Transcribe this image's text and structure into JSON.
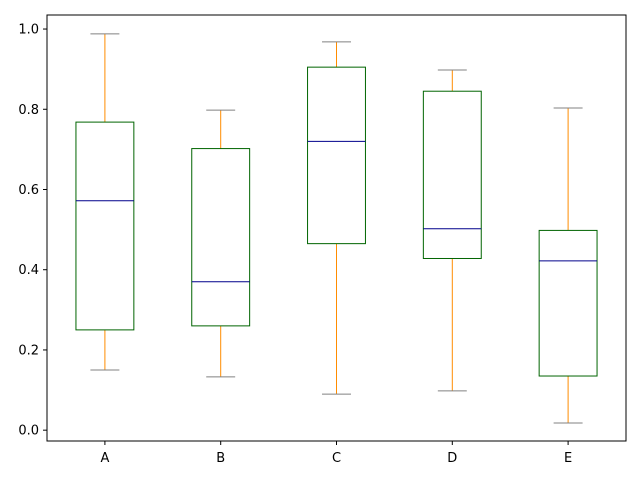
{
  "chart_data": {
    "type": "box",
    "title": "",
    "xlabel": "",
    "ylabel": "",
    "categories": [
      "A",
      "B",
      "C",
      "D",
      "E"
    ],
    "boxes": [
      {
        "name": "A",
        "whislo": 0.15,
        "q1": 0.25,
        "med": 0.572,
        "q3": 0.768,
        "whishi": 0.988
      },
      {
        "name": "B",
        "whislo": 0.133,
        "q1": 0.26,
        "med": 0.37,
        "q3": 0.702,
        "whishi": 0.798
      },
      {
        "name": "C",
        "whislo": 0.09,
        "q1": 0.465,
        "med": 0.72,
        "q3": 0.905,
        "whishi": 0.968
      },
      {
        "name": "D",
        "whislo": 0.098,
        "q1": 0.428,
        "med": 0.502,
        "q3": 0.845,
        "whishi": 0.898
      },
      {
        "name": "E",
        "whislo": 0.018,
        "q1": 0.135,
        "med": 0.422,
        "q3": 0.498,
        "whishi": 0.803
      }
    ],
    "ylim": [
      -0.027,
      1.035
    ],
    "yticks": [
      0.0,
      0.2,
      0.4,
      0.6,
      0.8,
      1.0
    ],
    "ytick_labels": [
      "0.0",
      "0.2",
      "0.4",
      "0.6",
      "0.8",
      "1.0"
    ],
    "grid": false,
    "colors": {
      "box": "#006400",
      "whisker": "#ff8c00",
      "median": "#00008b",
      "cap": "#808080"
    }
  }
}
